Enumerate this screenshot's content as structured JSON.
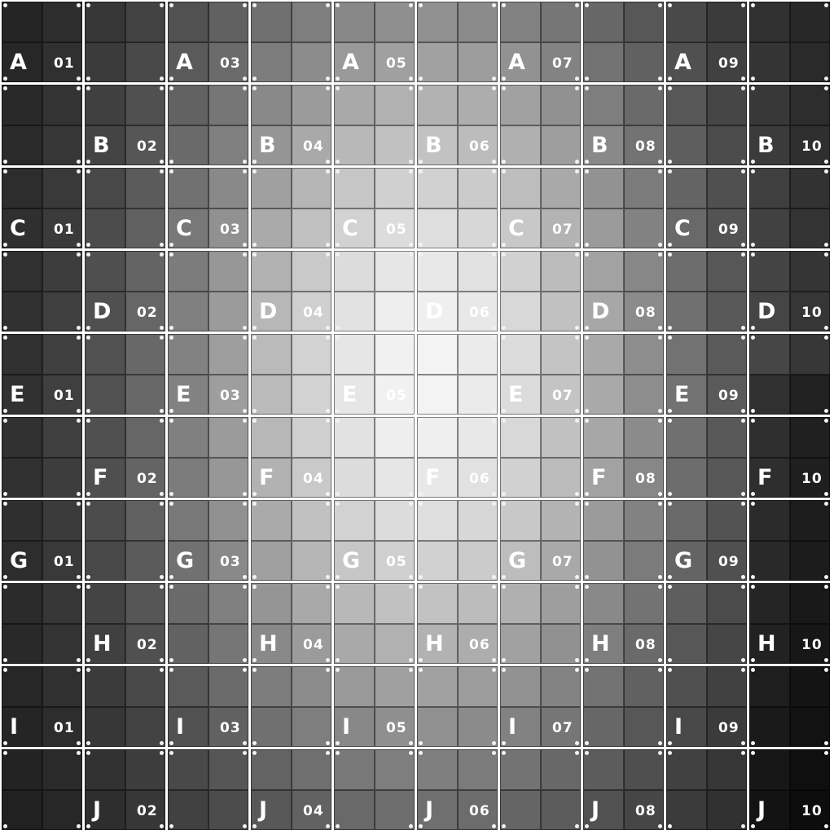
{
  "grid": {
    "rows": [
      "A",
      "B",
      "C",
      "D",
      "E",
      "F",
      "G",
      "H",
      "I",
      "J"
    ],
    "columns": [
      "01",
      "02",
      "03",
      "04",
      "05",
      "06",
      "07",
      "08",
      "09",
      "10"
    ],
    "labeled_cells": "columns 01,03,05,07,09 in rows A,C,E,G,I; columns 02,04,06,08,10 in rows B,D,F,H,J",
    "brightest_region": "E 05 / E 06",
    "darkest_region": "J 10"
  }
}
